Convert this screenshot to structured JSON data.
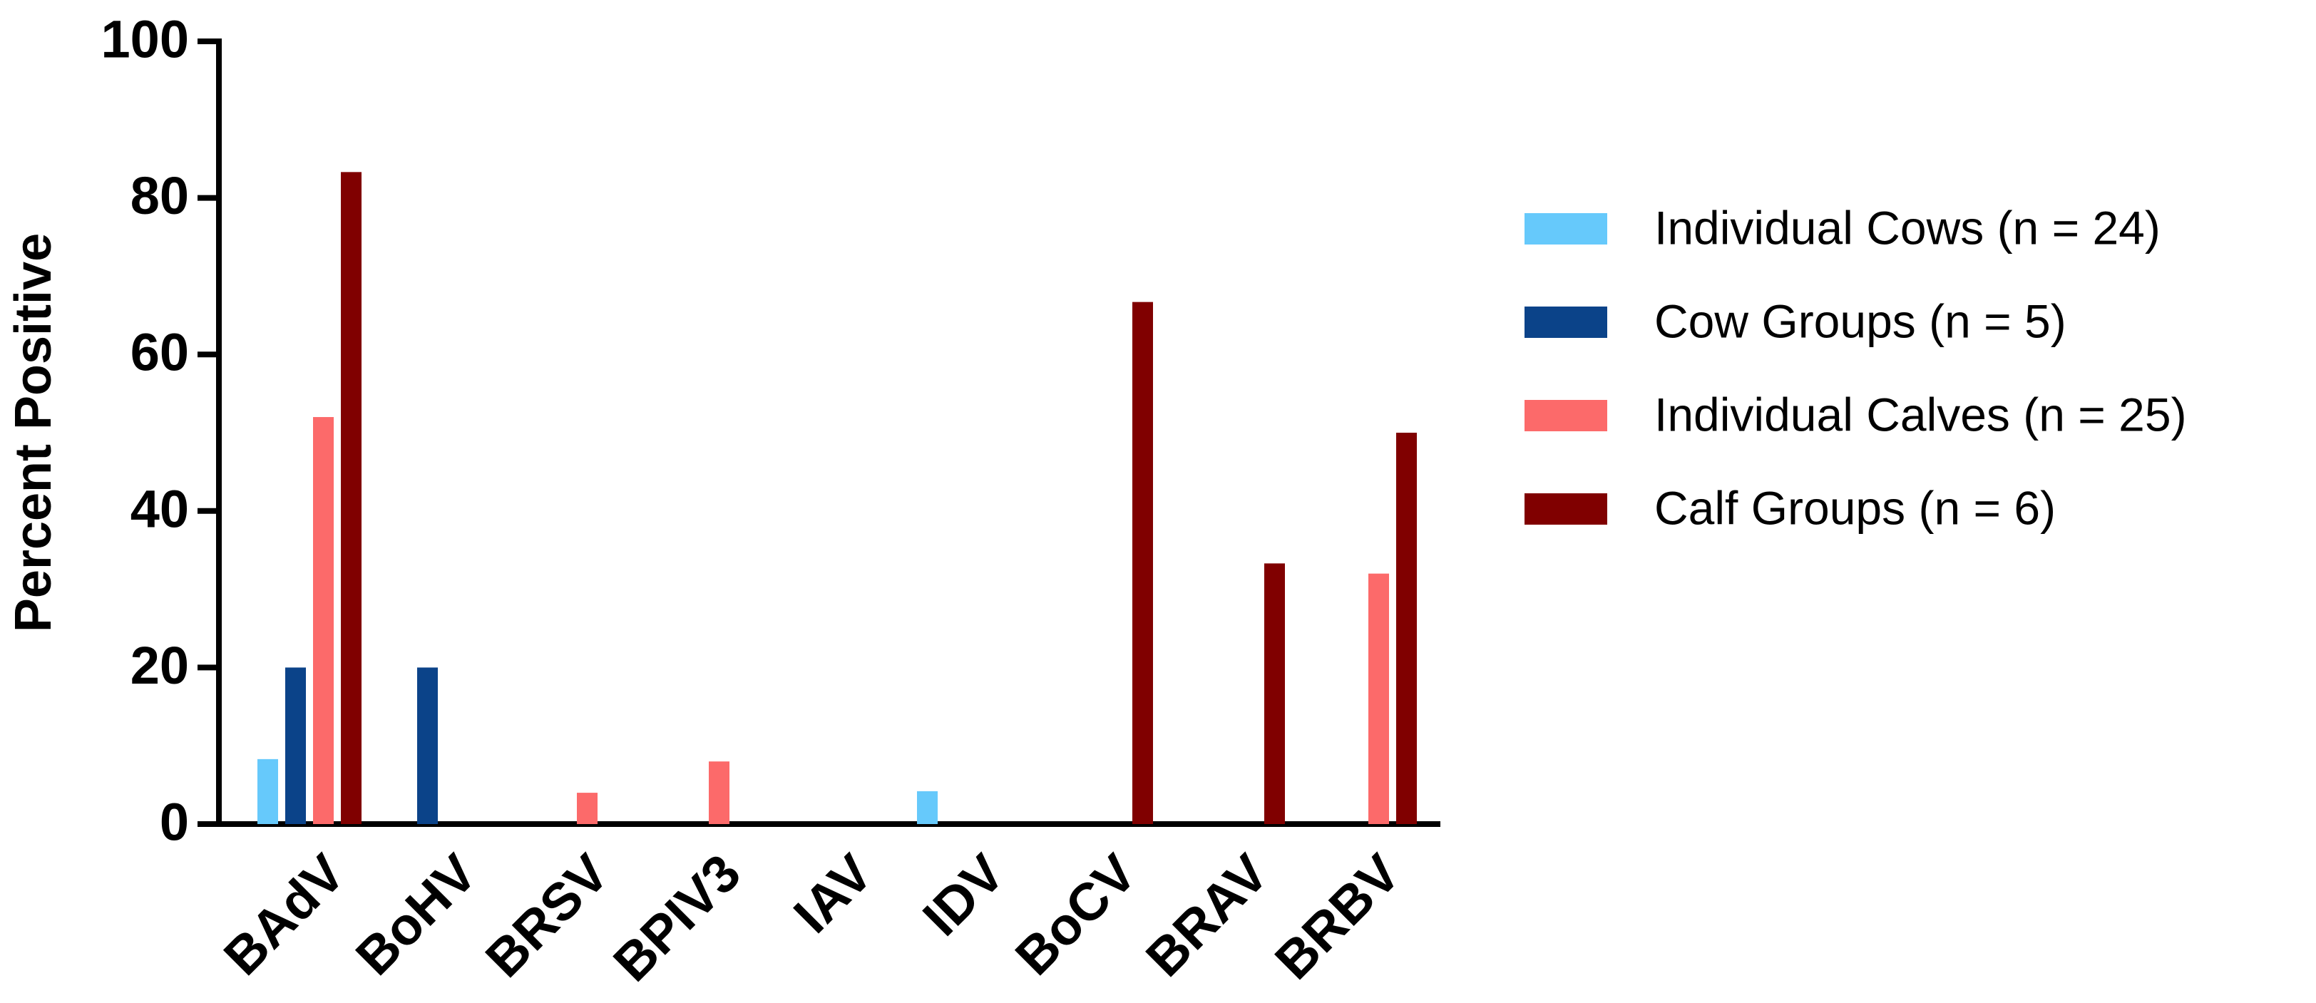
{
  "chart_data": {
    "type": "bar",
    "y_label": "Percent Positive",
    "categories": [
      "BAdV",
      "BoHV",
      "BRSV",
      "BPIV3",
      "IAV",
      "IDV",
      "BoCV",
      "BRAV",
      "BRBV"
    ],
    "series": [
      {
        "name": "Individual Cows (n = 24)",
        "color": "#66c9fb",
        "values": [
          8.3,
          0,
          0,
          0,
          0,
          4.2,
          0,
          0,
          0
        ]
      },
      {
        "name": "Cow Groups (n = 5)",
        "color": "#0b4389",
        "values": [
          20,
          20,
          0,
          0,
          0,
          0,
          0,
          0,
          0
        ]
      },
      {
        "name": "Individual Calves (n = 25)",
        "color": "#fc6a6a",
        "values": [
          52,
          0,
          4,
          8,
          0,
          0,
          0,
          0,
          32
        ]
      },
      {
        "name": "Calf Groups (n = 6)",
        "color": "#800000",
        "values": [
          83.3,
          0,
          0,
          0,
          0,
          0,
          66.7,
          33.3,
          50
        ]
      }
    ],
    "ylim": [
      0,
      100
    ],
    "yticks": [
      0,
      20,
      40,
      60,
      80,
      100
    ],
    "grid": false,
    "legend": "right"
  }
}
